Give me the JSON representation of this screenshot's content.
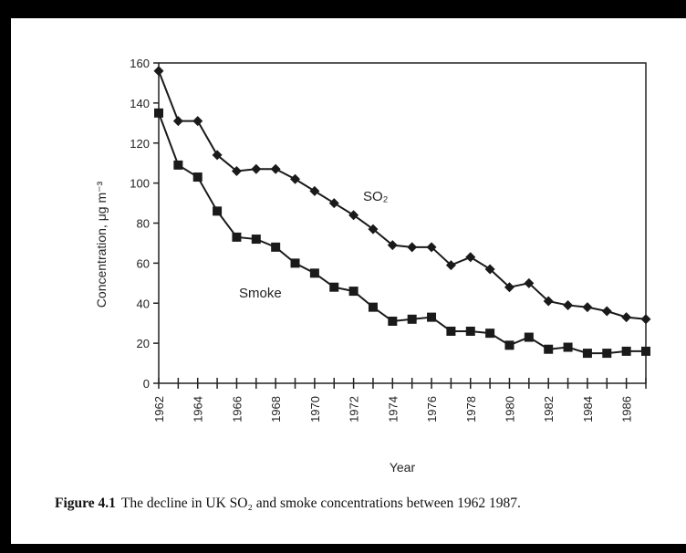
{
  "chart_data": {
    "type": "line",
    "title": "",
    "xlabel": "Year",
    "ylabel": "Concentration, μg m⁻³",
    "xlim": [
      1962,
      1987
    ],
    "ylim": [
      0,
      160
    ],
    "yticks": [
      0,
      20,
      40,
      60,
      80,
      100,
      120,
      140,
      160
    ],
    "xtick_labels": [
      "1962",
      "1964",
      "1966",
      "1968",
      "1970",
      "1972",
      "1974",
      "1976",
      "1978",
      "1980",
      "1982",
      "1984",
      "1986"
    ],
    "grid": false,
    "legend": "none",
    "x": [
      1962,
      1963,
      1964,
      1965,
      1966,
      1967,
      1968,
      1969,
      1970,
      1971,
      1972,
      1973,
      1974,
      1975,
      1976,
      1977,
      1978,
      1979,
      1980,
      1981,
      1982,
      1983,
      1984,
      1985,
      1986,
      1987
    ],
    "series": [
      {
        "name": "SO₂",
        "marker": "diamond",
        "values": [
          156,
          131,
          131,
          114,
          106,
          107,
          107,
          102,
          96,
          90,
          84,
          77,
          69,
          68,
          68,
          59,
          63,
          57,
          48,
          50,
          41,
          39,
          38,
          36,
          33,
          32
        ]
      },
      {
        "name": "Smoke",
        "marker": "square",
        "values": [
          135,
          109,
          103,
          86,
          73,
          72,
          68,
          60,
          55,
          48,
          46,
          38,
          31,
          32,
          33,
          26,
          26,
          25,
          19,
          23,
          17,
          18,
          15,
          15,
          16,
          16
        ]
      }
    ]
  },
  "caption": {
    "label": "Figure 4.1",
    "text": "The decline in UK SO₂ and smoke concentrations between 1962 1987."
  }
}
